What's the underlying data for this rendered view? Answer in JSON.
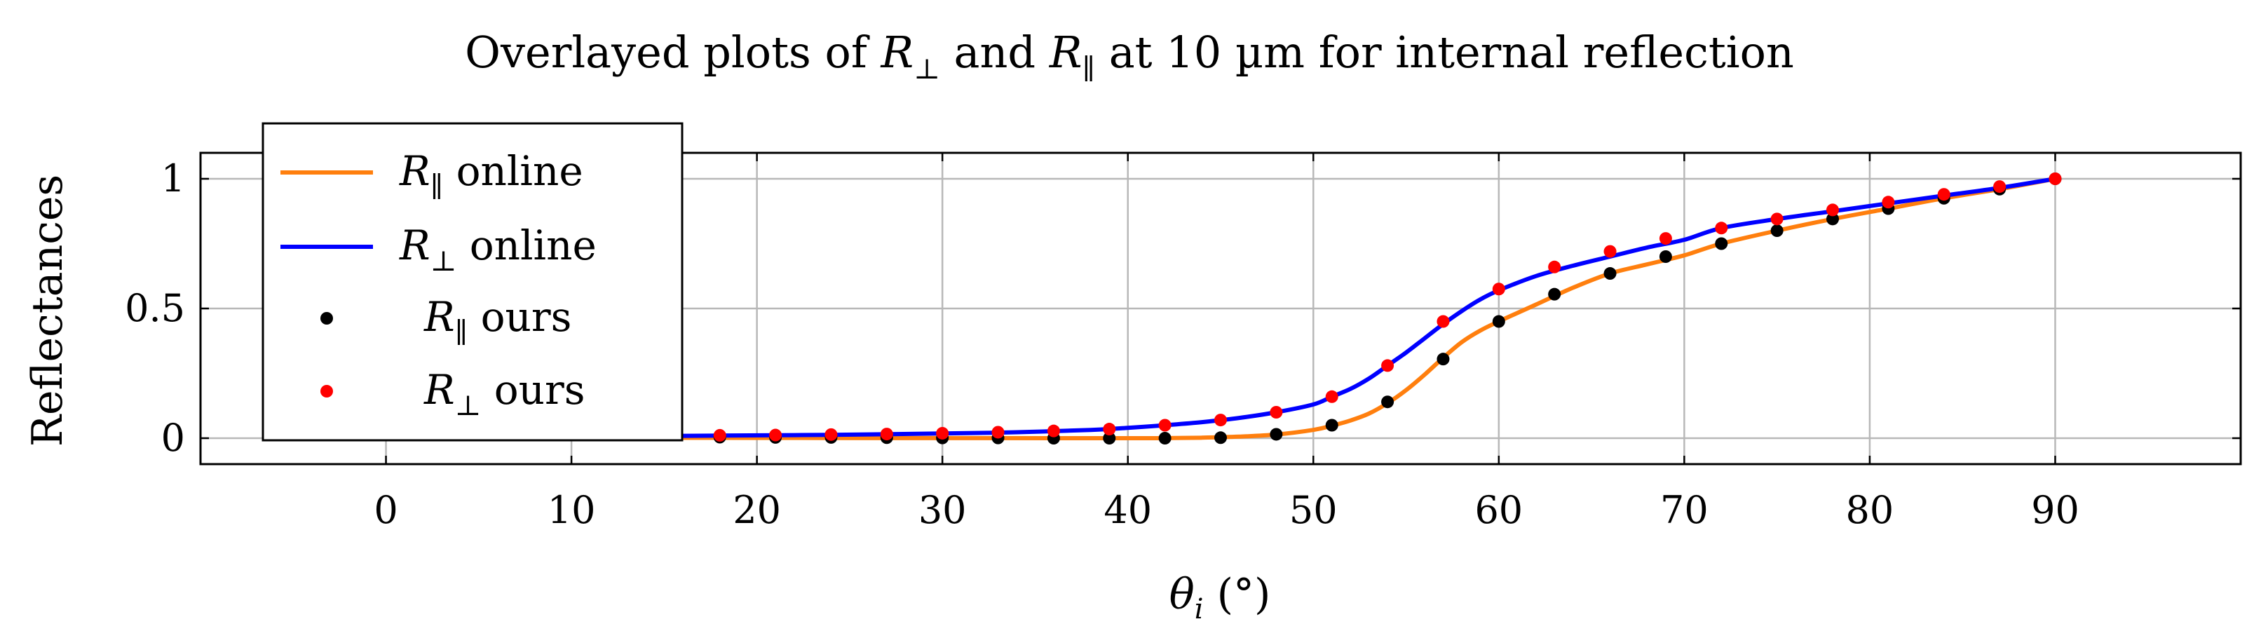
{
  "chart_data": {
    "type": "line",
    "title": {
      "prefix": "Overlayed plots of ",
      "sym1": "R",
      "sub1": "⊥",
      "middle": " and ",
      "sym2": "R",
      "sub2": "∥",
      "suffix": " at 10 µm for internal reflection"
    },
    "xlabel": {
      "symbol": "θ",
      "sub": "i",
      "unit": " (°)"
    },
    "ylabel": "Reflectances",
    "xlim": [
      -10,
      100
    ],
    "ylim": [
      -0.1,
      1.1
    ],
    "xticks": [
      0,
      10,
      20,
      30,
      40,
      50,
      60,
      70,
      80,
      90
    ],
    "yticks": [
      0,
      0.5,
      1
    ],
    "ytick_labels": [
      "0",
      "0.5",
      "1"
    ],
    "grid": true,
    "legend_position": "top-left",
    "legend": [
      {
        "symbol": "R",
        "sub": "∥",
        "text": " online",
        "style": "line",
        "color": "#ff7f0e"
      },
      {
        "symbol": "R",
        "sub": "⊥",
        "text": " online",
        "style": "line",
        "color": "#0000ff"
      },
      {
        "symbol": "R",
        "sub": "∥",
        "text": " ours",
        "style": "marker",
        "color": "#000000"
      },
      {
        "symbol": "R",
        "sub": "⊥",
        "text": " ours",
        "style": "marker",
        "color": "#ff0000"
      }
    ],
    "series": [
      {
        "name": "R∥ online",
        "style": "line",
        "color": "#ff7f0e",
        "x": [
          0,
          10,
          20,
          30,
          36,
          40,
          42,
          44,
          46,
          48,
          50,
          51,
          52,
          53,
          54,
          55,
          56,
          57,
          58,
          59,
          60,
          62,
          64,
          66,
          68,
          70,
          72,
          75,
          78,
          81,
          84,
          87,
          90
        ],
        "y": [
          0.002,
          0.0015,
          0.001,
          0.0004,
          0.0001,
          0.0,
          0.0002,
          0.002,
          0.006,
          0.014,
          0.032,
          0.048,
          0.068,
          0.095,
          0.135,
          0.185,
          0.245,
          0.31,
          0.37,
          0.415,
          0.45,
          0.515,
          0.58,
          0.635,
          0.67,
          0.705,
          0.75,
          0.8,
          0.845,
          0.885,
          0.925,
          0.96,
          1.0
        ]
      },
      {
        "name": "R⊥ online",
        "style": "line",
        "color": "#0000ff",
        "x": [
          0,
          10,
          18,
          24,
          30,
          34,
          38,
          40,
          42,
          44,
          46,
          48,
          50,
          51,
          52,
          53,
          54,
          55,
          56,
          57,
          58,
          59,
          60,
          62,
          64,
          66,
          68,
          70,
          72,
          75,
          78,
          81,
          84,
          87,
          90
        ],
        "y": [
          0.003,
          0.006,
          0.01,
          0.013,
          0.018,
          0.023,
          0.032,
          0.04,
          0.05,
          0.062,
          0.078,
          0.1,
          0.13,
          0.16,
          0.19,
          0.23,
          0.28,
          0.33,
          0.385,
          0.44,
          0.49,
          0.535,
          0.57,
          0.625,
          0.665,
          0.7,
          0.735,
          0.765,
          0.81,
          0.845,
          0.875,
          0.905,
          0.935,
          0.965,
          1.0
        ]
      },
      {
        "name": "R∥ ours",
        "style": "marker",
        "color": "#000000",
        "x": [
          18,
          21,
          24,
          27,
          30,
          33,
          36,
          39,
          42,
          45,
          48,
          51,
          54,
          57,
          60,
          63,
          66,
          69,
          72,
          75,
          78,
          81,
          84,
          87,
          90
        ],
        "y": [
          0.004,
          0.003,
          0.003,
          0.002,
          0.001,
          0.001,
          0.0,
          0.0,
          0.0,
          0.002,
          0.015,
          0.05,
          0.14,
          0.305,
          0.45,
          0.555,
          0.635,
          0.7,
          0.75,
          0.8,
          0.845,
          0.885,
          0.925,
          0.96,
          1.0
        ]
      },
      {
        "name": "R⊥ ours",
        "style": "marker",
        "color": "#ff0000",
        "x": [
          18,
          21,
          24,
          27,
          30,
          33,
          36,
          39,
          42,
          45,
          48,
          51,
          54,
          57,
          60,
          63,
          66,
          69,
          72,
          75,
          78,
          81,
          84,
          87,
          90
        ],
        "y": [
          0.011,
          0.012,
          0.014,
          0.016,
          0.019,
          0.023,
          0.028,
          0.035,
          0.05,
          0.07,
          0.1,
          0.16,
          0.28,
          0.45,
          0.575,
          0.66,
          0.72,
          0.77,
          0.81,
          0.845,
          0.88,
          0.91,
          0.94,
          0.97,
          1.0
        ]
      }
    ]
  }
}
